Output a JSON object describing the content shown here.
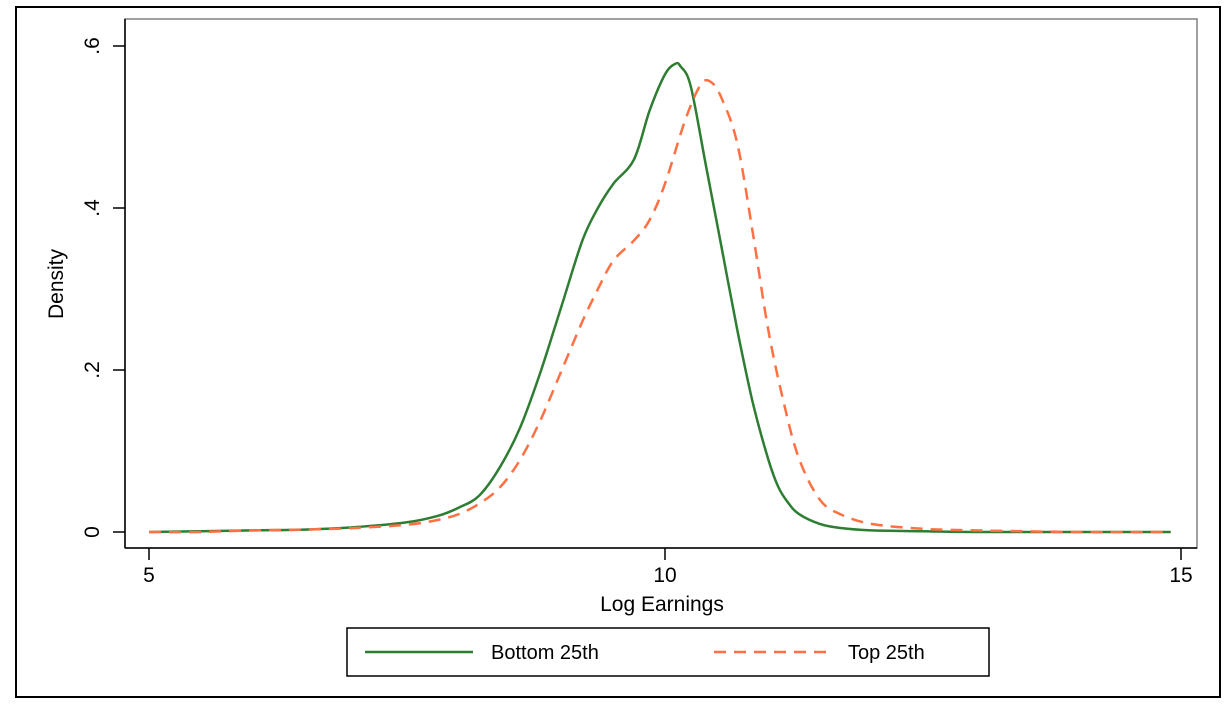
{
  "chart_data": {
    "type": "line",
    "xlabel": "Log Earnings",
    "ylabel": "Density",
    "xlim": [
      5,
      15
    ],
    "ylim": [
      0,
      0.6
    ],
    "x_ticks": [
      {
        "value": 5,
        "label": "5"
      },
      {
        "value": 10,
        "label": "10"
      },
      {
        "value": 15,
        "label": "15"
      }
    ],
    "y_ticks": [
      {
        "value": 0,
        "label": "0"
      },
      {
        "value": 0.2,
        "label": ".2"
      },
      {
        "value": 0.4,
        "label": ".4"
      },
      {
        "value": 0.6,
        "label": ".6"
      }
    ],
    "grid": false,
    "legend_position": "bottom",
    "series": [
      {
        "name": "Bottom 25th",
        "color": "#2e7d32",
        "dash": "solid",
        "x": [
          5.0,
          5.5,
          6.0,
          6.5,
          7.0,
          7.5,
          7.8,
          8.0,
          8.2,
          8.4,
          8.6,
          8.8,
          9.0,
          9.2,
          9.35,
          9.5,
          9.7,
          9.85,
          10.0,
          10.1,
          10.15,
          10.25,
          10.4,
          10.55,
          10.7,
          10.85,
          11.0,
          11.1,
          11.2,
          11.3,
          11.5,
          11.7,
          12.0,
          12.5,
          13.0,
          14.0,
          14.9
        ],
        "y": [
          0.0,
          0.001,
          0.002,
          0.003,
          0.006,
          0.012,
          0.02,
          0.03,
          0.045,
          0.08,
          0.13,
          0.2,
          0.28,
          0.36,
          0.4,
          0.43,
          0.46,
          0.52,
          0.565,
          0.578,
          0.575,
          0.55,
          0.45,
          0.35,
          0.25,
          0.16,
          0.09,
          0.055,
          0.035,
          0.022,
          0.01,
          0.005,
          0.002,
          0.001,
          0.0,
          0.0,
          0.0
        ]
      },
      {
        "name": "Top 25th",
        "color": "#ff7043",
        "dash": "dashed",
        "x": [
          5.0,
          5.5,
          6.0,
          6.5,
          7.0,
          7.5,
          7.8,
          8.0,
          8.2,
          8.4,
          8.6,
          8.8,
          9.0,
          9.2,
          9.35,
          9.5,
          9.7,
          9.85,
          10.0,
          10.2,
          10.35,
          10.45,
          10.55,
          10.7,
          10.85,
          11.0,
          11.15,
          11.3,
          11.5,
          11.7,
          12.0,
          12.5,
          13.0,
          14.0,
          14.9
        ],
        "y": [
          0.0,
          0.0,
          0.002,
          0.003,
          0.005,
          0.009,
          0.015,
          0.022,
          0.035,
          0.055,
          0.09,
          0.14,
          0.2,
          0.26,
          0.3,
          0.335,
          0.36,
          0.385,
          0.43,
          0.51,
          0.553,
          0.555,
          0.535,
          0.48,
          0.37,
          0.25,
          0.16,
          0.09,
          0.04,
          0.022,
          0.01,
          0.004,
          0.002,
          0.0,
          0.0
        ]
      }
    ]
  }
}
